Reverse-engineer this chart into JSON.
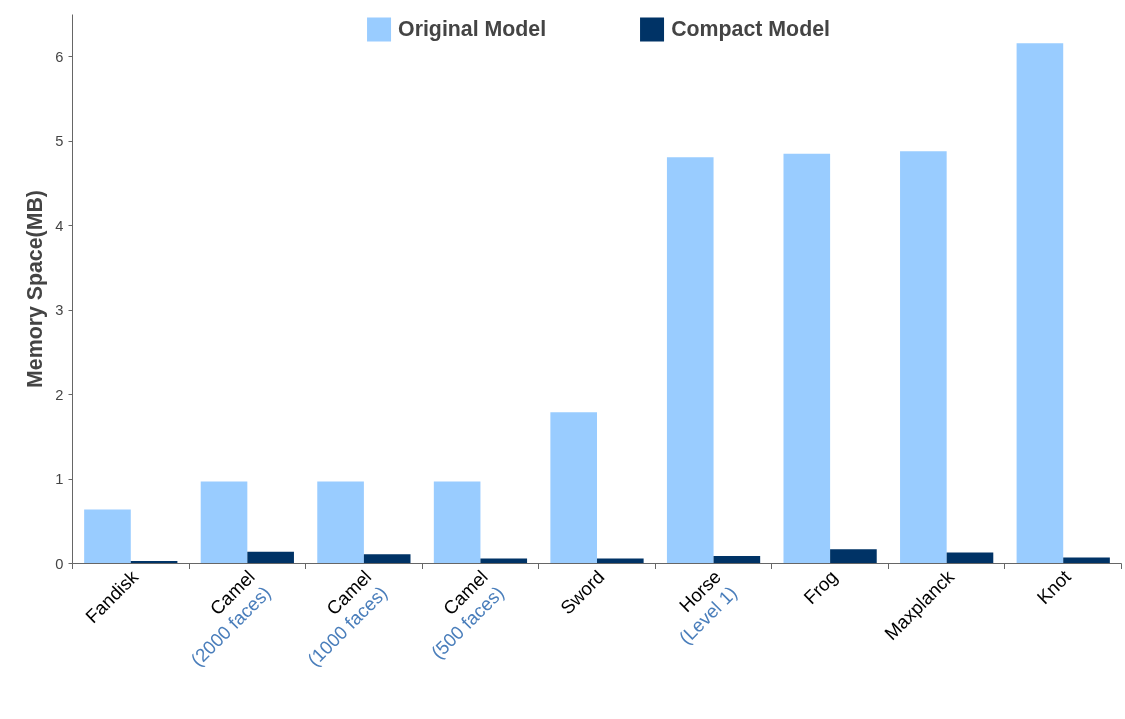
{
  "chart_data": {
    "type": "bar",
    "ylabel": "Memory Space(MB)",
    "categories": [
      "Fandisk",
      "Camel\n(2000 faces)",
      "Camel\n(1000 faces)",
      "Camel\n(500 faces)",
      "Sword",
      "Horse\n(Level 1)",
      "Frog",
      "Maxplanck",
      "Knot"
    ],
    "series": [
      {
        "name": "Original Model",
        "color": "#99ccff",
        "values": [
          0.64,
          0.97,
          0.97,
          0.97,
          1.79,
          4.81,
          4.85,
          4.88,
          6.16
        ]
      },
      {
        "name": "Compact Model",
        "color": "#003366",
        "values": [
          0.03,
          0.14,
          0.11,
          0.06,
          0.06,
          0.09,
          0.17,
          0.13,
          0.07
        ]
      }
    ],
    "ylim": [
      0,
      6.5
    ],
    "yticks": [
      0,
      1,
      2,
      3,
      4,
      5,
      6
    ],
    "grid": false,
    "legend": "top"
  }
}
